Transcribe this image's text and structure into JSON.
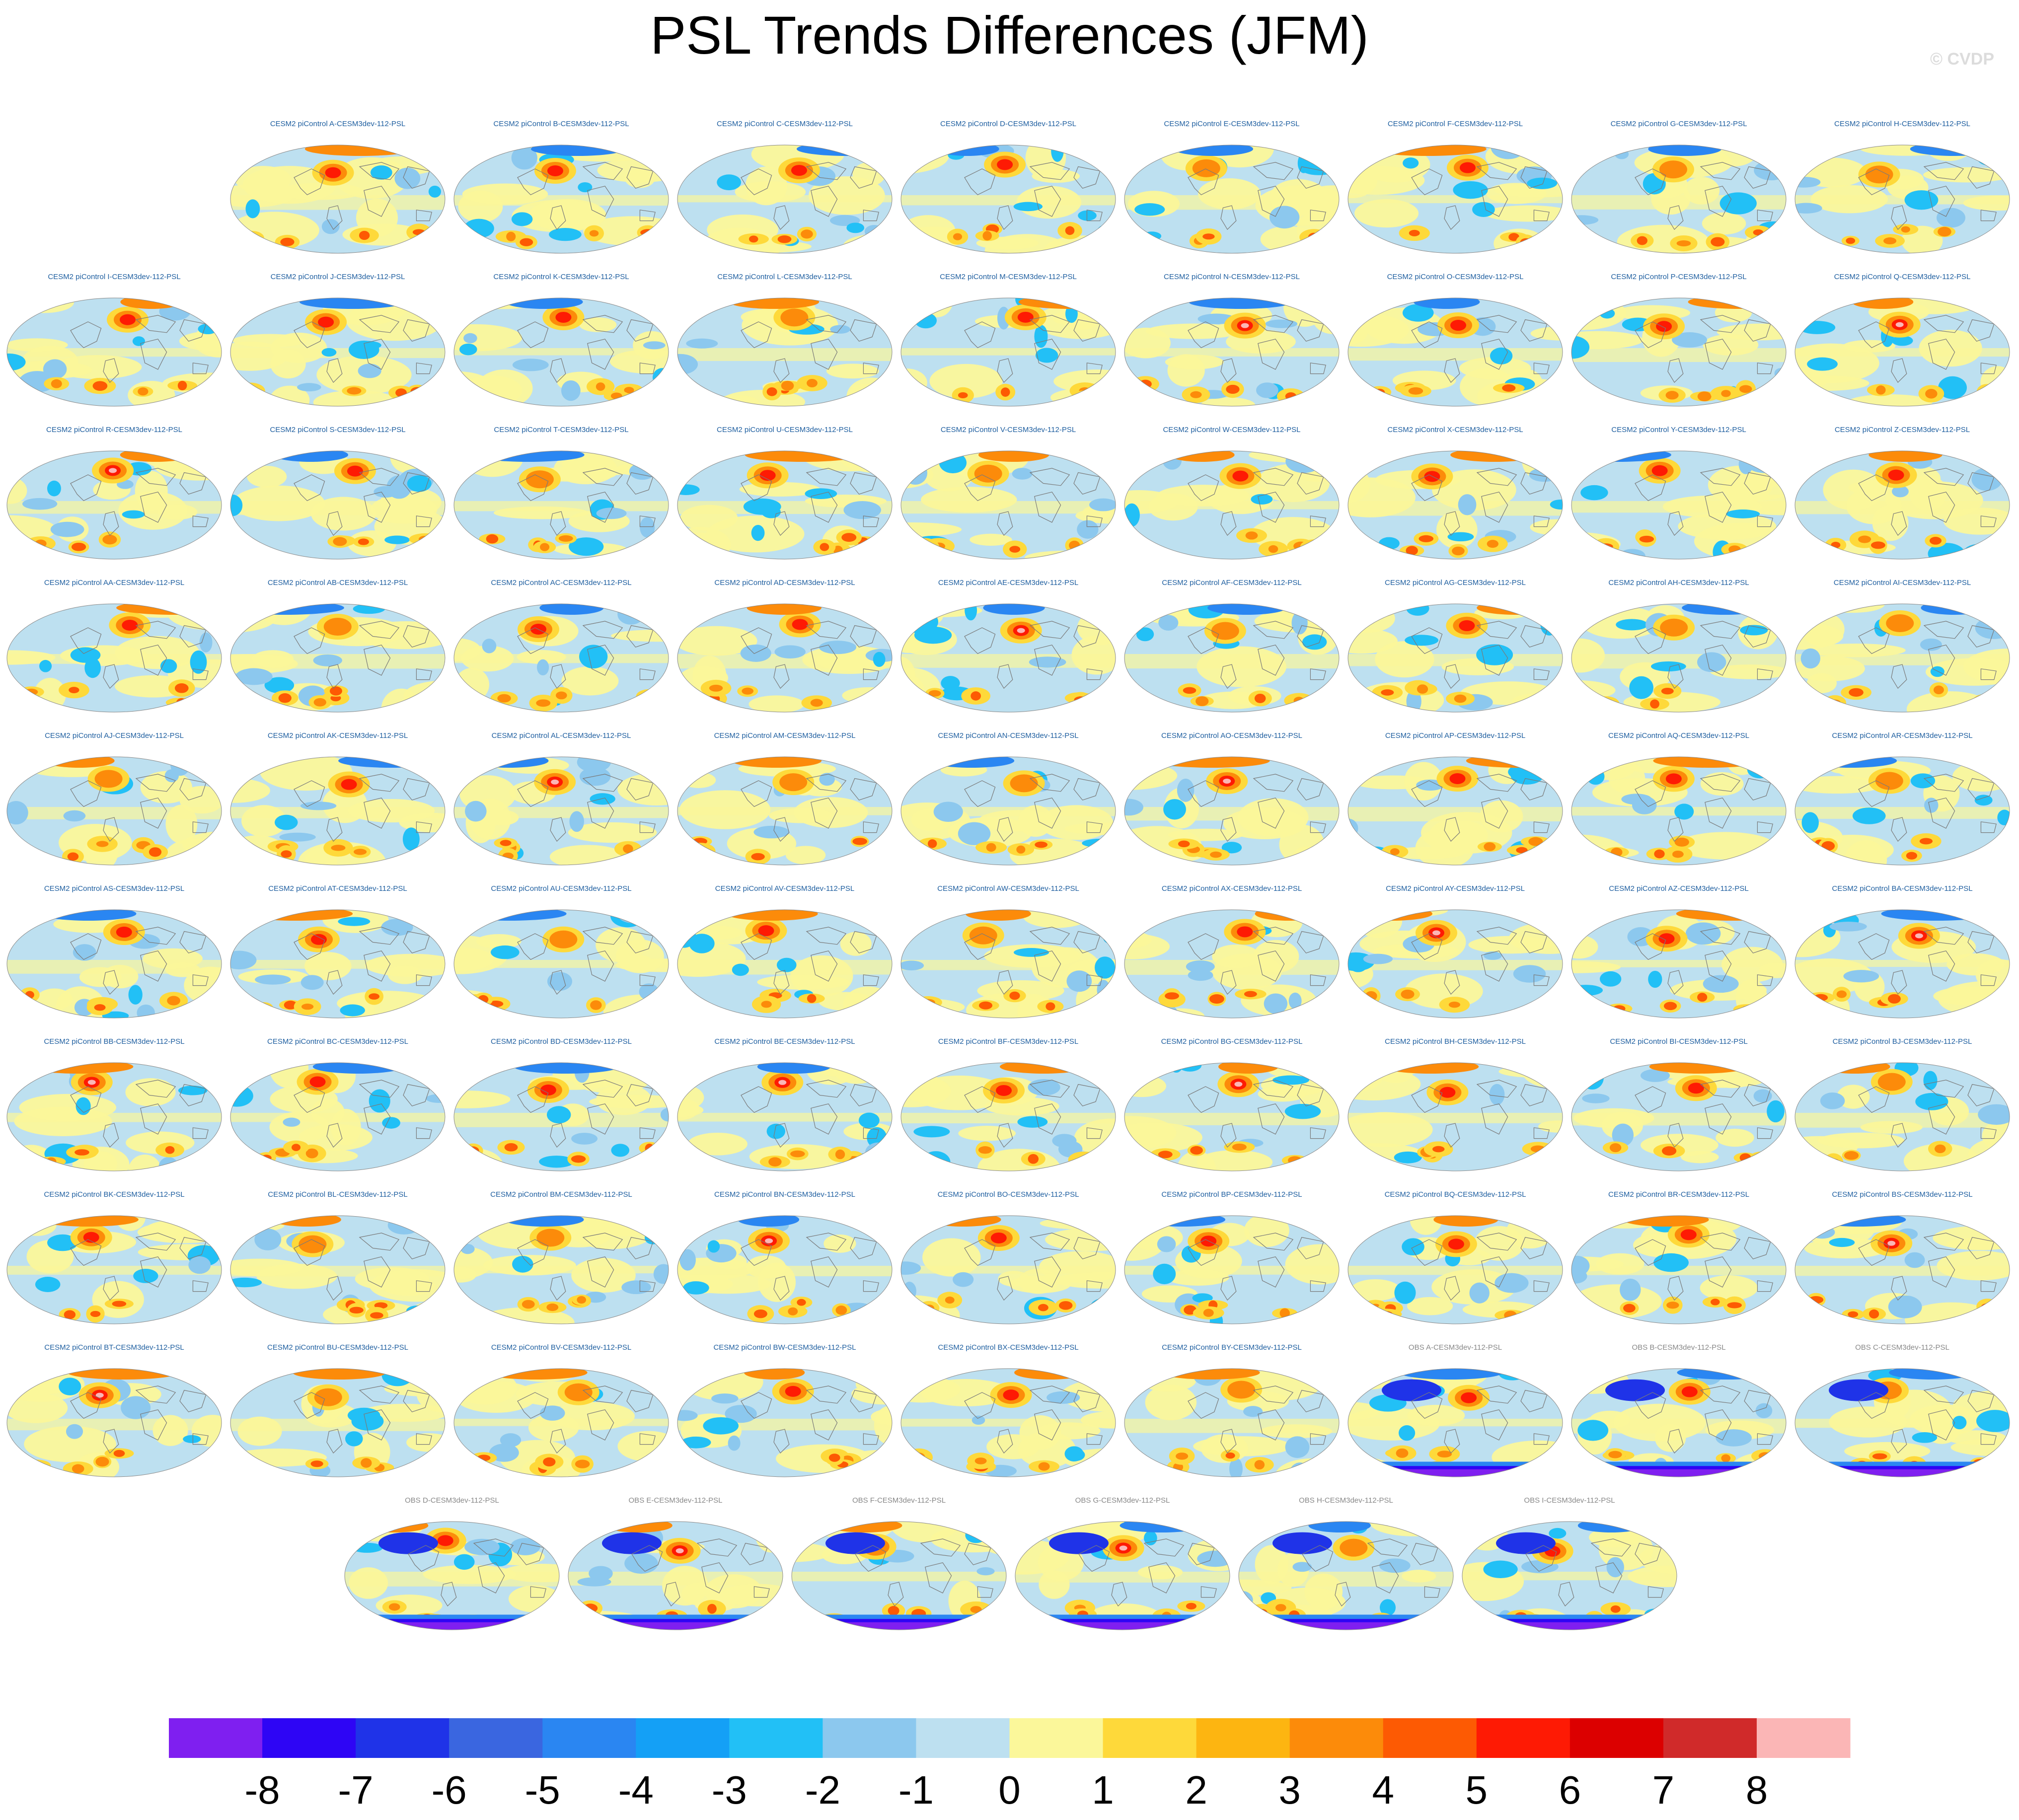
{
  "chart_data": {
    "type": "heatmap",
    "title": "PSL Trends Differences (JFM)",
    "watermark": "© CVDP",
    "panels": [
      {
        "label": "CESM2 piControl A-CESM3dev-112-PSL",
        "source": "model"
      },
      {
        "label": "CESM2 piControl B-CESM3dev-112-PSL",
        "source": "model"
      },
      {
        "label": "CESM2 piControl C-CESM3dev-112-PSL",
        "source": "model"
      },
      {
        "label": "CESM2 piControl D-CESM3dev-112-PSL",
        "source": "model"
      },
      {
        "label": "CESM2 piControl E-CESM3dev-112-PSL",
        "source": "model"
      },
      {
        "label": "CESM2 piControl F-CESM3dev-112-PSL",
        "source": "model"
      },
      {
        "label": "CESM2 piControl G-CESM3dev-112-PSL",
        "source": "model"
      },
      {
        "label": "CESM2 piControl H-CESM3dev-112-PSL",
        "source": "model"
      },
      {
        "label": "CESM2 piControl I-CESM3dev-112-PSL",
        "source": "model"
      },
      {
        "label": "CESM2 piControl J-CESM3dev-112-PSL",
        "source": "model"
      },
      {
        "label": "CESM2 piControl K-CESM3dev-112-PSL",
        "source": "model"
      },
      {
        "label": "CESM2 piControl L-CESM3dev-112-PSL",
        "source": "model"
      },
      {
        "label": "CESM2 piControl M-CESM3dev-112-PSL",
        "source": "model"
      },
      {
        "label": "CESM2 piControl N-CESM3dev-112-PSL",
        "source": "model"
      },
      {
        "label": "CESM2 piControl O-CESM3dev-112-PSL",
        "source": "model"
      },
      {
        "label": "CESM2 piControl P-CESM3dev-112-PSL",
        "source": "model"
      },
      {
        "label": "CESM2 piControl Q-CESM3dev-112-PSL",
        "source": "model"
      },
      {
        "label": "CESM2 piControl R-CESM3dev-112-PSL",
        "source": "model"
      },
      {
        "label": "CESM2 piControl S-CESM3dev-112-PSL",
        "source": "model"
      },
      {
        "label": "CESM2 piControl T-CESM3dev-112-PSL",
        "source": "model"
      },
      {
        "label": "CESM2 piControl U-CESM3dev-112-PSL",
        "source": "model"
      },
      {
        "label": "CESM2 piControl V-CESM3dev-112-PSL",
        "source": "model"
      },
      {
        "label": "CESM2 piControl W-CESM3dev-112-PSL",
        "source": "model"
      },
      {
        "label": "CESM2 piControl X-CESM3dev-112-PSL",
        "source": "model"
      },
      {
        "label": "CESM2 piControl Y-CESM3dev-112-PSL",
        "source": "model"
      },
      {
        "label": "CESM2 piControl Z-CESM3dev-112-PSL",
        "source": "model"
      },
      {
        "label": "CESM2 piControl AA-CESM3dev-112-PSL",
        "source": "model"
      },
      {
        "label": "CESM2 piControl AB-CESM3dev-112-PSL",
        "source": "model"
      },
      {
        "label": "CESM2 piControl AC-CESM3dev-112-PSL",
        "source": "model"
      },
      {
        "label": "CESM2 piControl AD-CESM3dev-112-PSL",
        "source": "model"
      },
      {
        "label": "CESM2 piControl AE-CESM3dev-112-PSL",
        "source": "model"
      },
      {
        "label": "CESM2 piControl AF-CESM3dev-112-PSL",
        "source": "model"
      },
      {
        "label": "CESM2 piControl AG-CESM3dev-112-PSL",
        "source": "model"
      },
      {
        "label": "CESM2 piControl AH-CESM3dev-112-PSL",
        "source": "model"
      },
      {
        "label": "CESM2 piControl AI-CESM3dev-112-PSL",
        "source": "model"
      },
      {
        "label": "CESM2 piControl AJ-CESM3dev-112-PSL",
        "source": "model"
      },
      {
        "label": "CESM2 piControl AK-CESM3dev-112-PSL",
        "source": "model"
      },
      {
        "label": "CESM2 piControl AL-CESM3dev-112-PSL",
        "source": "model"
      },
      {
        "label": "CESM2 piControl AM-CESM3dev-112-PSL",
        "source": "model"
      },
      {
        "label": "CESM2 piControl AN-CESM3dev-112-PSL",
        "source": "model"
      },
      {
        "label": "CESM2 piControl AO-CESM3dev-112-PSL",
        "source": "model"
      },
      {
        "label": "CESM2 piControl AP-CESM3dev-112-PSL",
        "source": "model"
      },
      {
        "label": "CESM2 piControl AQ-CESM3dev-112-PSL",
        "source": "model"
      },
      {
        "label": "CESM2 piControl AR-CESM3dev-112-PSL",
        "source": "model"
      },
      {
        "label": "CESM2 piControl AS-CESM3dev-112-PSL",
        "source": "model"
      },
      {
        "label": "CESM2 piControl AT-CESM3dev-112-PSL",
        "source": "model"
      },
      {
        "label": "CESM2 piControl AU-CESM3dev-112-PSL",
        "source": "model"
      },
      {
        "label": "CESM2 piControl AV-CESM3dev-112-PSL",
        "source": "model"
      },
      {
        "label": "CESM2 piControl AW-CESM3dev-112-PSL",
        "source": "model"
      },
      {
        "label": "CESM2 piControl AX-CESM3dev-112-PSL",
        "source": "model"
      },
      {
        "label": "CESM2 piControl AY-CESM3dev-112-PSL",
        "source": "model"
      },
      {
        "label": "CESM2 piControl AZ-CESM3dev-112-PSL",
        "source": "model"
      },
      {
        "label": "CESM2 piControl BA-CESM3dev-112-PSL",
        "source": "model"
      },
      {
        "label": "CESM2 piControl BB-CESM3dev-112-PSL",
        "source": "model"
      },
      {
        "label": "CESM2 piControl BC-CESM3dev-112-PSL",
        "source": "model"
      },
      {
        "label": "CESM2 piControl BD-CESM3dev-112-PSL",
        "source": "model"
      },
      {
        "label": "CESM2 piControl BE-CESM3dev-112-PSL",
        "source": "model"
      },
      {
        "label": "CESM2 piControl BF-CESM3dev-112-PSL",
        "source": "model"
      },
      {
        "label": "CESM2 piControl BG-CESM3dev-112-PSL",
        "source": "model"
      },
      {
        "label": "CESM2 piControl BH-CESM3dev-112-PSL",
        "source": "model"
      },
      {
        "label": "CESM2 piControl BI-CESM3dev-112-PSL",
        "source": "model"
      },
      {
        "label": "CESM2 piControl BJ-CESM3dev-112-PSL",
        "source": "model"
      },
      {
        "label": "CESM2 piControl BK-CESM3dev-112-PSL",
        "source": "model"
      },
      {
        "label": "CESM2 piControl BL-CESM3dev-112-PSL",
        "source": "model"
      },
      {
        "label": "CESM2 piControl BM-CESM3dev-112-PSL",
        "source": "model"
      },
      {
        "label": "CESM2 piControl BN-CESM3dev-112-PSL",
        "source": "model"
      },
      {
        "label": "CESM2 piControl BO-CESM3dev-112-PSL",
        "source": "model"
      },
      {
        "label": "CESM2 piControl BP-CESM3dev-112-PSL",
        "source": "model"
      },
      {
        "label": "CESM2 piControl BQ-CESM3dev-112-PSL",
        "source": "model"
      },
      {
        "label": "CESM2 piControl BR-CESM3dev-112-PSL",
        "source": "model"
      },
      {
        "label": "CESM2 piControl BS-CESM3dev-112-PSL",
        "source": "model"
      },
      {
        "label": "CESM2 piControl BT-CESM3dev-112-PSL",
        "source": "model"
      },
      {
        "label": "CESM2 piControl BU-CESM3dev-112-PSL",
        "source": "model"
      },
      {
        "label": "CESM2 piControl BV-CESM3dev-112-PSL",
        "source": "model"
      },
      {
        "label": "CESM2 piControl BW-CESM3dev-112-PSL",
        "source": "model"
      },
      {
        "label": "CESM2 piControl BX-CESM3dev-112-PSL",
        "source": "model"
      },
      {
        "label": "CESM2 piControl BY-CESM3dev-112-PSL",
        "source": "model"
      },
      {
        "label": "OBS A-CESM3dev-112-PSL",
        "source": "obs"
      },
      {
        "label": "OBS B-CESM3dev-112-PSL",
        "source": "obs"
      },
      {
        "label": "OBS C-CESM3dev-112-PSL",
        "source": "obs"
      },
      {
        "label": "OBS D-CESM3dev-112-PSL",
        "source": "obs"
      },
      {
        "label": "OBS E-CESM3dev-112-PSL",
        "source": "obs"
      },
      {
        "label": "OBS F-CESM3dev-112-PSL",
        "source": "obs"
      },
      {
        "label": "OBS G-CESM3dev-112-PSL",
        "source": "obs"
      },
      {
        "label": "OBS H-CESM3dev-112-PSL",
        "source": "obs"
      },
      {
        "label": "OBS I-CESM3dev-112-PSL",
        "source": "obs"
      }
    ],
    "colorbar": {
      "levels": [
        -8,
        -7,
        -6,
        -5,
        -4,
        -3,
        -2,
        -1,
        0,
        1,
        2,
        3,
        4,
        5,
        6,
        7,
        8
      ],
      "tick_labels": [
        "-8",
        "-7",
        "-6",
        "-5",
        "-4",
        "-3",
        "-2",
        "-1",
        "0",
        "1",
        "2",
        "3",
        "4",
        "5",
        "6",
        "7",
        "8"
      ],
      "colors": [
        "#7f1ff0",
        "#2e05f5",
        "#1f33e8",
        "#3a66e0",
        "#2a86f2",
        "#14a0f6",
        "#22c0f6",
        "#8cc8ee",
        "#bde0f0",
        "#fbf79a",
        "#fed93a",
        "#fdb511",
        "#fc8b0a",
        "#fd5a03",
        "#fe1a04",
        "#dc0000",
        "#d02a2a",
        "#fbb6b6"
      ]
    },
    "colors": {
      "model_label": "#1f5fa0",
      "obs_label": "#888888",
      "coastline": "#7a7a7a"
    }
  }
}
